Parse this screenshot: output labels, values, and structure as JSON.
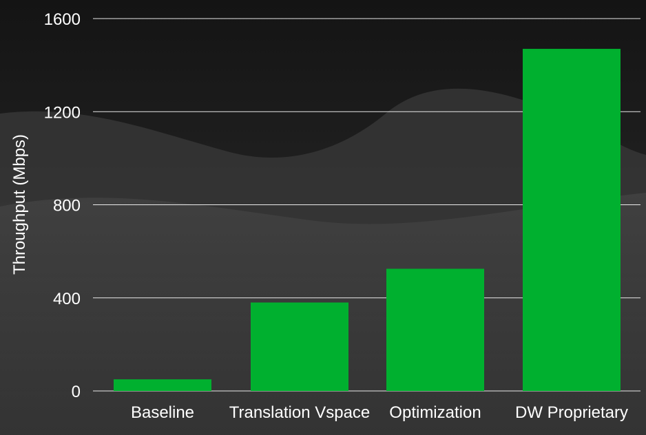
{
  "chart_data": {
    "type": "bar",
    "categories": [
      "Baseline",
      "Translation Vspace",
      "Optimization",
      "DW Proprietary"
    ],
    "values": [
      50,
      380,
      525,
      1470
    ],
    "title": "",
    "xlabel": "",
    "ylabel": "Throughput (Mbps)",
    "ylim": [
      0,
      1600
    ],
    "yticks": [
      0,
      400,
      800,
      1200,
      1600
    ],
    "grid": "horizontal",
    "legend": "none"
  },
  "colors": {
    "bar": "#00b02f",
    "gridline": "#ffffff",
    "text": "#ffffff",
    "background_top": "#141414",
    "background_bottom": "#3a3a3a"
  }
}
